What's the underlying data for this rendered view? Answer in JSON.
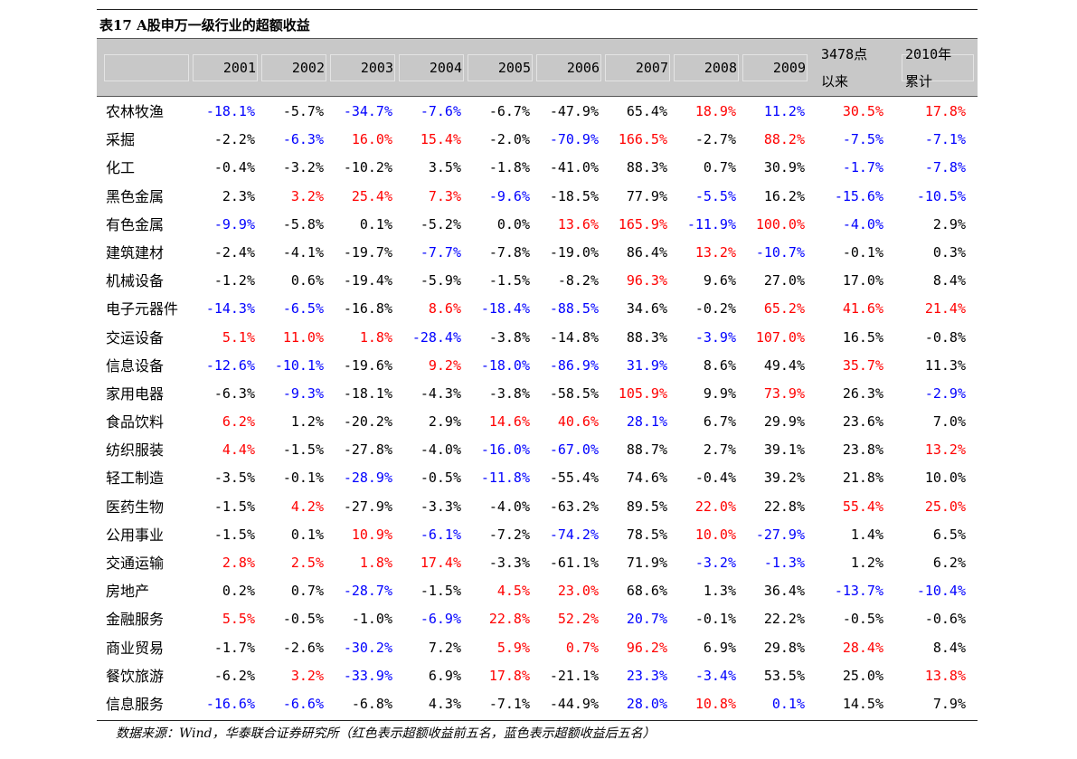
{
  "title": "表17 A股申万一级行业的超额收益",
  "header": {
    "years": [
      "2001",
      "2002",
      "2003",
      "2004",
      "2005",
      "2006",
      "2007",
      "2008",
      "2009"
    ],
    "since3478": [
      "3478点",
      "以来"
    ],
    "ytd2010": [
      "2010年",
      "累计"
    ]
  },
  "colors": {
    "red": "#ff0000",
    "blue": "#0000ff",
    "black": "#000000"
  },
  "rows": [
    {
      "name": "农林牧渔",
      "values": [
        "-18.1%",
        "-5.7%",
        "-34.7%",
        "-7.6%",
        "-6.7%",
        "-47.9%",
        "65.4%",
        "18.9%",
        "11.2%",
        "30.5%",
        "17.8%"
      ],
      "colors": [
        "b",
        "k",
        "b",
        "b",
        "k",
        "k",
        "k",
        "r",
        "b",
        "r",
        "r"
      ]
    },
    {
      "name": "采掘",
      "values": [
        "-2.2%",
        "-6.3%",
        "16.0%",
        "15.4%",
        "-2.0%",
        "-70.9%",
        "166.5%",
        "-2.7%",
        "88.2%",
        "-7.5%",
        "-7.1%"
      ],
      "colors": [
        "k",
        "b",
        "r",
        "r",
        "k",
        "b",
        "r",
        "k",
        "r",
        "b",
        "b"
      ]
    },
    {
      "name": "化工",
      "values": [
        "-0.4%",
        "-3.2%",
        "-10.2%",
        "3.5%",
        "-1.8%",
        "-41.0%",
        "88.3%",
        "0.7%",
        "30.9%",
        "-1.7%",
        "-7.8%"
      ],
      "colors": [
        "k",
        "k",
        "k",
        "k",
        "k",
        "k",
        "k",
        "k",
        "k",
        "b",
        "b"
      ]
    },
    {
      "name": "黑色金属",
      "values": [
        "2.3%",
        "3.2%",
        "25.4%",
        "7.3%",
        "-9.6%",
        "-18.5%",
        "77.9%",
        "-5.5%",
        "16.2%",
        "-15.6%",
        "-10.5%"
      ],
      "colors": [
        "k",
        "r",
        "r",
        "r",
        "b",
        "k",
        "k",
        "b",
        "k",
        "b",
        "b"
      ]
    },
    {
      "name": "有色金属",
      "values": [
        "-9.9%",
        "-5.8%",
        "0.1%",
        "-5.2%",
        "0.0%",
        "13.6%",
        "165.9%",
        "-11.9%",
        "100.0%",
        "-4.0%",
        "2.9%"
      ],
      "colors": [
        "b",
        "k",
        "k",
        "k",
        "k",
        "r",
        "r",
        "b",
        "r",
        "b",
        "k"
      ]
    },
    {
      "name": "建筑建材",
      "values": [
        "-2.4%",
        "-4.1%",
        "-19.7%",
        "-7.7%",
        "-7.8%",
        "-19.0%",
        "86.4%",
        "13.2%",
        "-10.7%",
        "-0.1%",
        "0.3%"
      ],
      "colors": [
        "k",
        "k",
        "k",
        "b",
        "k",
        "k",
        "k",
        "r",
        "b",
        "k",
        "k"
      ]
    },
    {
      "name": "机械设备",
      "values": [
        "-1.2%",
        "0.6%",
        "-19.4%",
        "-5.9%",
        "-1.5%",
        "-8.2%",
        "96.3%",
        "9.6%",
        "27.0%",
        "17.0%",
        "8.4%"
      ],
      "colors": [
        "k",
        "k",
        "k",
        "k",
        "k",
        "k",
        "r",
        "k",
        "k",
        "k",
        "k"
      ]
    },
    {
      "name": "电子元器件",
      "values": [
        "-14.3%",
        "-6.5%",
        "-16.8%",
        "8.6%",
        "-18.4%",
        "-88.5%",
        "34.6%",
        "-0.2%",
        "65.2%",
        "41.6%",
        "21.4%"
      ],
      "colors": [
        "b",
        "b",
        "k",
        "r",
        "b",
        "b",
        "k",
        "k",
        "r",
        "r",
        "r"
      ]
    },
    {
      "name": "交运设备",
      "values": [
        "5.1%",
        "11.0%",
        "1.8%",
        "-28.4%",
        "-3.8%",
        "-14.8%",
        "88.3%",
        "-3.9%",
        "107.0%",
        "16.5%",
        "-0.8%"
      ],
      "colors": [
        "r",
        "r",
        "r",
        "b",
        "k",
        "k",
        "k",
        "b",
        "r",
        "k",
        "k"
      ]
    },
    {
      "name": "信息设备",
      "values": [
        "-12.6%",
        "-10.1%",
        "-19.6%",
        "9.2%",
        "-18.0%",
        "-86.9%",
        "31.9%",
        "8.6%",
        "49.4%",
        "35.7%",
        "11.3%"
      ],
      "colors": [
        "b",
        "b",
        "k",
        "r",
        "b",
        "b",
        "b",
        "k",
        "k",
        "r",
        "k"
      ]
    },
    {
      "name": "家用电器",
      "values": [
        "-6.3%",
        "-9.3%",
        "-18.1%",
        "-4.3%",
        "-3.8%",
        "-58.5%",
        "105.9%",
        "9.9%",
        "73.9%",
        "26.3%",
        "-2.9%"
      ],
      "colors": [
        "k",
        "b",
        "k",
        "k",
        "k",
        "k",
        "r",
        "k",
        "r",
        "k",
        "b"
      ]
    },
    {
      "name": "食品饮料",
      "values": [
        "6.2%",
        "1.2%",
        "-20.2%",
        "2.9%",
        "14.6%",
        "40.6%",
        "28.1%",
        "6.7%",
        "29.9%",
        "23.6%",
        "7.0%"
      ],
      "colors": [
        "r",
        "k",
        "k",
        "k",
        "r",
        "r",
        "b",
        "k",
        "k",
        "k",
        "k"
      ]
    },
    {
      "name": "纺织服装",
      "values": [
        "4.4%",
        "-1.5%",
        "-27.8%",
        "-4.0%",
        "-16.0%",
        "-67.0%",
        "88.7%",
        "2.7%",
        "39.1%",
        "23.8%",
        "13.2%"
      ],
      "colors": [
        "r",
        "k",
        "k",
        "k",
        "b",
        "b",
        "k",
        "k",
        "k",
        "k",
        "r"
      ]
    },
    {
      "name": "轻工制造",
      "values": [
        "-3.5%",
        "-0.1%",
        "-28.9%",
        "-0.5%",
        "-11.8%",
        "-55.4%",
        "74.6%",
        "-0.4%",
        "39.2%",
        "21.8%",
        "10.0%"
      ],
      "colors": [
        "k",
        "k",
        "b",
        "k",
        "b",
        "k",
        "k",
        "k",
        "k",
        "k",
        "k"
      ]
    },
    {
      "name": "医药生物",
      "values": [
        "-1.5%",
        "4.2%",
        "-27.9%",
        "-3.3%",
        "-4.0%",
        "-63.2%",
        "89.5%",
        "22.0%",
        "22.8%",
        "55.4%",
        "25.0%"
      ],
      "colors": [
        "k",
        "r",
        "k",
        "k",
        "k",
        "k",
        "k",
        "r",
        "k",
        "r",
        "r"
      ]
    },
    {
      "name": "公用事业",
      "values": [
        "-1.5%",
        "0.1%",
        "10.9%",
        "-6.1%",
        "-7.2%",
        "-74.2%",
        "78.5%",
        "10.0%",
        "-27.9%",
        "1.4%",
        "6.5%"
      ],
      "colors": [
        "k",
        "k",
        "r",
        "b",
        "k",
        "b",
        "k",
        "r",
        "b",
        "k",
        "k"
      ]
    },
    {
      "name": "交通运输",
      "values": [
        "2.8%",
        "2.5%",
        "1.8%",
        "17.4%",
        "-3.3%",
        "-61.1%",
        "71.9%",
        "-3.2%",
        "-1.3%",
        "1.2%",
        "6.2%"
      ],
      "colors": [
        "r",
        "r",
        "r",
        "r",
        "k",
        "k",
        "k",
        "b",
        "b",
        "k",
        "k"
      ]
    },
    {
      "name": "房地产",
      "values": [
        "0.2%",
        "0.7%",
        "-28.7%",
        "-1.5%",
        "4.5%",
        "23.0%",
        "68.6%",
        "1.3%",
        "36.4%",
        "-13.7%",
        "-10.4%"
      ],
      "colors": [
        "k",
        "k",
        "b",
        "k",
        "r",
        "r",
        "k",
        "k",
        "k",
        "b",
        "b"
      ]
    },
    {
      "name": "金融服务",
      "values": [
        "5.5%",
        "-0.5%",
        "-1.0%",
        "-6.9%",
        "22.8%",
        "52.2%",
        "20.7%",
        "-0.1%",
        "22.2%",
        "-0.5%",
        "-0.6%"
      ],
      "colors": [
        "r",
        "k",
        "k",
        "b",
        "r",
        "r",
        "b",
        "k",
        "k",
        "k",
        "k"
      ]
    },
    {
      "name": "商业贸易",
      "values": [
        "-1.7%",
        "-2.6%",
        "-30.2%",
        "7.2%",
        "5.9%",
        "0.7%",
        "96.2%",
        "6.9%",
        "29.8%",
        "28.4%",
        "8.4%"
      ],
      "colors": [
        "k",
        "k",
        "b",
        "k",
        "r",
        "r",
        "r",
        "k",
        "k",
        "r",
        "k"
      ]
    },
    {
      "name": "餐饮旅游",
      "values": [
        "-6.2%",
        "3.2%",
        "-33.9%",
        "6.9%",
        "17.8%",
        "-21.1%",
        "23.3%",
        "-3.4%",
        "53.5%",
        "25.0%",
        "13.8%"
      ],
      "colors": [
        "k",
        "r",
        "b",
        "k",
        "r",
        "k",
        "b",
        "b",
        "k",
        "k",
        "r"
      ]
    },
    {
      "name": "信息服务",
      "values": [
        "-16.6%",
        "-6.6%",
        "-6.8%",
        "4.3%",
        "-7.1%",
        "-44.9%",
        "28.0%",
        "10.8%",
        "0.1%",
        "14.5%",
        "7.9%"
      ],
      "colors": [
        "b",
        "b",
        "k",
        "k",
        "k",
        "k",
        "b",
        "r",
        "b",
        "k",
        "k"
      ]
    }
  ],
  "source": "数据来源：Wind，华泰联合证券研究所（红色表示超额收益前五名，蓝色表示超额收益后五名）"
}
